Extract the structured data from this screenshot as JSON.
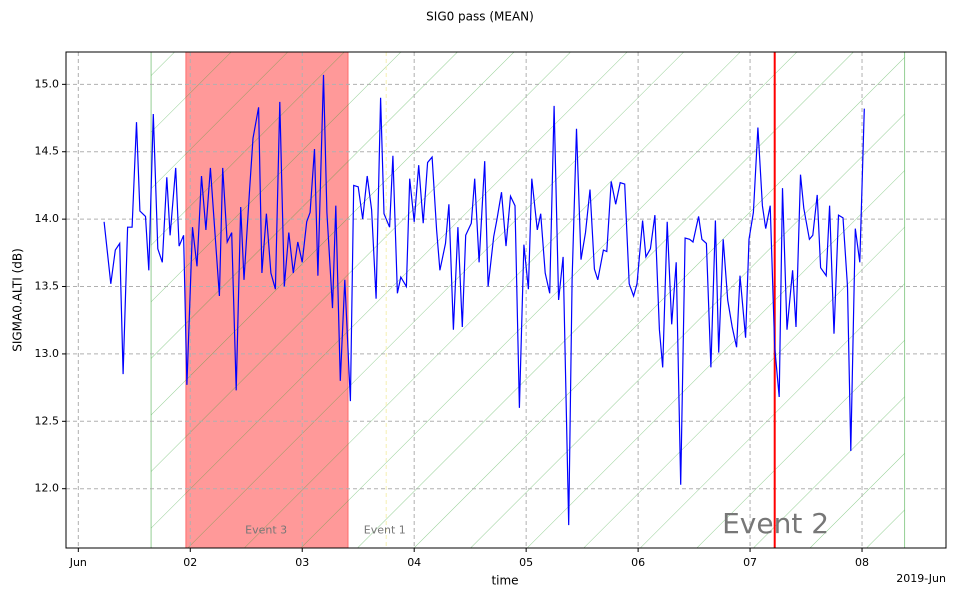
{
  "chart_data": {
    "type": "line",
    "title": "SIG0 pass (MEAN)",
    "xlabel": "time",
    "ylabel": "SIGMA0.ALTI (dB)",
    "x_offset_label": "2019-Jun",
    "xlim": [
      0.89,
      8.75
    ],
    "ylim": [
      11.56,
      15.24
    ],
    "xticks": [
      {
        "value": 1,
        "label": "Jun"
      },
      {
        "value": 2,
        "label": "02"
      },
      {
        "value": 3,
        "label": "03"
      },
      {
        "value": 4,
        "label": "04"
      },
      {
        "value": 5,
        "label": "05"
      },
      {
        "value": 6,
        "label": "06"
      },
      {
        "value": 7,
        "label": "07"
      },
      {
        "value": 8,
        "label": "08"
      }
    ],
    "yticks": [
      {
        "value": 12,
        "label": "12.0"
      },
      12.5,
      {
        "value": 13,
        "label": "13.0"
      },
      13.5,
      {
        "value": 14,
        "label": "14.0"
      },
      14.5,
      {
        "value": 15,
        "label": "15.0"
      }
    ],
    "grid": true,
    "spans": [
      {
        "xlim": [
          1.65,
          8.38
        ],
        "color": "#2ca02c",
        "hatch": true
      },
      {
        "xlim": [
          1.96,
          3.41
        ],
        "color": "#ff0000",
        "hatch": false
      }
    ],
    "vlines": [
      {
        "x": 7.22,
        "color": "#ff0000",
        "dashed": false
      },
      {
        "x": 3.75,
        "color": "#f5f0b0",
        "dashed": true
      }
    ],
    "annotations": [
      {
        "text": "Event 3",
        "x": 2.49,
        "y": 11.69,
        "size": 11
      },
      {
        "text": "Event 1",
        "x": 3.55,
        "y": 11.69,
        "size": 11
      },
      {
        "text": "Event 2",
        "x": 6.75,
        "y": 11.73,
        "size": 28
      }
    ],
    "series": [
      {
        "name": "SIG0",
        "color": "#0000ff",
        "x": [
          1.23,
          1.29,
          1.33,
          1.37,
          1.4,
          1.44,
          1.48,
          1.52,
          1.55,
          1.6,
          1.63,
          1.67,
          1.71,
          1.75,
          1.79,
          1.82,
          1.87,
          1.9,
          1.94,
          1.97,
          2.02,
          2.06,
          2.1,
          2.14,
          2.18,
          2.21,
          2.26,
          2.29,
          2.33,
          2.37,
          2.41,
          2.45,
          2.48,
          2.53,
          2.56,
          2.61,
          2.64,
          2.68,
          2.72,
          2.76,
          2.8,
          2.84,
          2.88,
          2.92,
          2.96,
          3.0,
          3.04,
          3.07,
          3.11,
          3.14,
          3.19,
          3.22,
          3.27,
          3.3,
          3.34,
          3.38,
          3.43,
          3.46,
          3.5,
          3.54,
          3.58,
          3.62,
          3.66,
          3.7,
          3.73,
          3.78,
          3.81,
          3.85,
          3.88,
          3.93,
          3.96,
          4.0,
          4.04,
          4.08,
          4.12,
          4.16,
          4.2,
          4.23,
          4.28,
          4.31,
          4.35,
          4.39,
          4.43,
          4.46,
          4.51,
          4.54,
          4.58,
          4.63,
          4.66,
          4.71,
          4.74,
          4.78,
          4.82,
          4.86,
          4.9,
          4.94,
          4.98,
          5.02,
          5.05,
          5.1,
          5.13,
          5.17,
          5.21,
          5.25,
          5.29,
          5.33,
          5.38,
          5.41,
          5.45,
          5.49,
          5.53,
          5.57,
          5.61,
          5.64,
          5.69,
          5.72,
          5.76,
          5.8,
          5.84,
          5.88,
          5.92,
          5.96,
          5.99,
          6.04,
          6.07,
          6.11,
          6.15,
          6.19,
          6.22,
          6.26,
          6.3,
          6.34,
          6.38,
          6.42,
          6.46,
          6.49,
          6.54,
          6.57,
          6.61,
          6.65,
          6.69,
          6.72,
          6.76,
          6.8,
          6.84,
          6.88,
          6.91,
          6.96,
          6.99,
          7.03,
          7.07,
          7.11,
          7.14,
          7.18,
          7.22,
          7.26,
          7.29,
          7.33,
          7.38,
          7.41,
          7.45,
          7.48,
          7.53,
          7.56,
          7.6,
          7.63,
          7.68,
          7.71,
          7.75,
          7.79,
          7.83,
          7.87,
          7.9,
          7.94,
          7.98,
          8.02
        ],
        "values": [
          13.98,
          13.52,
          13.77,
          13.82,
          12.85,
          13.94,
          13.94,
          14.72,
          14.06,
          14.02,
          13.62,
          14.78,
          13.78,
          13.68,
          14.31,
          13.88,
          14.38,
          13.8,
          13.88,
          12.77,
          13.94,
          13.65,
          14.32,
          13.92,
          14.38,
          14.02,
          13.43,
          14.38,
          13.83,
          13.9,
          12.73,
          14.09,
          13.55,
          14.22,
          14.6,
          14.83,
          13.6,
          14.04,
          13.6,
          13.48,
          14.87,
          13.5,
          13.9,
          13.6,
          13.83,
          13.68,
          13.98,
          14.05,
          14.52,
          13.58,
          15.07,
          14.05,
          13.34,
          14.1,
          12.8,
          13.55,
          12.65,
          14.25,
          14.24,
          14.0,
          14.32,
          14.07,
          13.41,
          14.9,
          14.04,
          13.94,
          14.47,
          13.45,
          13.57,
          13.5,
          14.3,
          13.98,
          14.4,
          13.97,
          14.42,
          14.46,
          13.92,
          13.62,
          13.82,
          14.11,
          13.18,
          13.94,
          13.2,
          13.88,
          13.97,
          14.3,
          13.68,
          14.43,
          13.5,
          13.87,
          14.0,
          14.2,
          13.8,
          14.17,
          14.1,
          12.6,
          13.81,
          13.48,
          14.3,
          13.92,
          14.04,
          13.6,
          13.45,
          14.84,
          13.4,
          13.72,
          11.73,
          13.55,
          14.67,
          13.7,
          13.9,
          14.22,
          13.63,
          13.55,
          13.77,
          13.76,
          14.28,
          14.11,
          14.27,
          14.26,
          13.52,
          13.43,
          13.52,
          13.99,
          13.72,
          13.78,
          14.03,
          13.18,
          12.9,
          13.98,
          13.22,
          13.68,
          12.03,
          13.86,
          13.85,
          13.83,
          14.02,
          13.85,
          13.82,
          12.9,
          13.99,
          13.01,
          13.85,
          13.4,
          13.2,
          13.05,
          13.58,
          13.12,
          13.85,
          14.05,
          14.68,
          14.1,
          13.93,
          14.1,
          13.05,
          12.68,
          14.23,
          13.18,
          13.62,
          13.2,
          14.33,
          14.08,
          13.85,
          13.88,
          14.18,
          13.64,
          13.58,
          14.1,
          13.15,
          14.03,
          14.01,
          13.5,
          12.28,
          13.93,
          13.68,
          14.82
        ]
      }
    ]
  }
}
